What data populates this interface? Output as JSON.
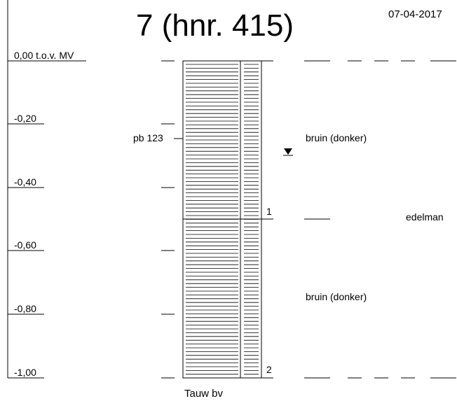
{
  "title": "7 (hnr. 415)",
  "date": "07-04-2017",
  "depth_labels": [
    "0,00 t.o.v. MV",
    "-0,20",
    "-0,40",
    "-0,60",
    "-0,80",
    "-1,00"
  ],
  "sample_label": "pb 123",
  "layers": [
    {
      "number": "1",
      "description": "bruin (donker)",
      "method": "edelman"
    },
    {
      "number": "2",
      "description": "bruin (donker)"
    }
  ],
  "footer": "Tauw bv"
}
